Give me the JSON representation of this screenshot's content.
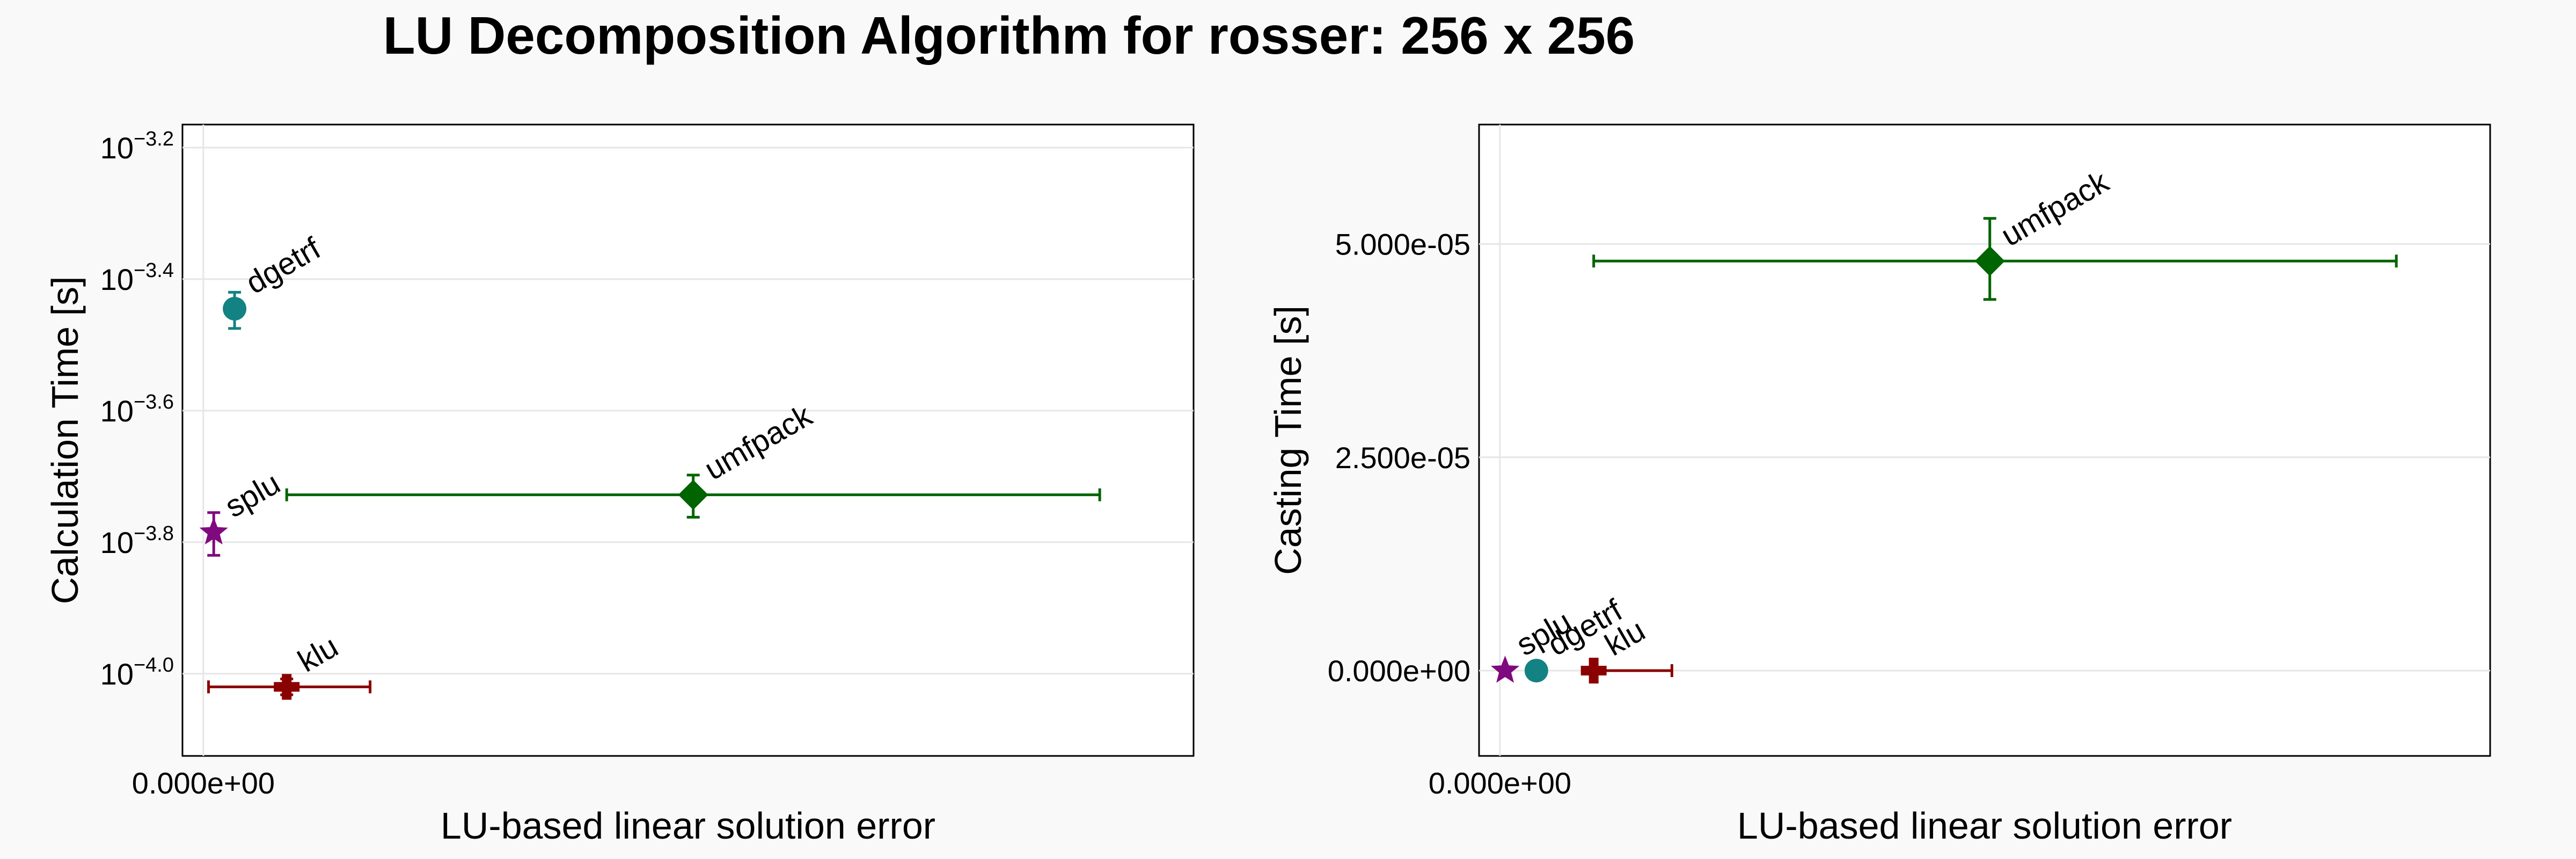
{
  "title": "LU Decomposition Algorithm for rosser: 256 x 256",
  "colors": {
    "dgetrf": "#128282",
    "splu": "#7f0a7f",
    "umfpack": "#006400",
    "klu": "#8b0000"
  },
  "chart_data": [
    {
      "type": "scatter",
      "subtype": "errorbars",
      "xlabel": "LU-based linear solution error",
      "ylabel": "Calculation Time [s]",
      "yscale": "log10",
      "xlim": [
        -0.2,
        9.5
      ],
      "ylim": [
        -4.125,
        -3.165
      ],
      "x_ticks": [
        {
          "value": 0,
          "label": "0.000e+00"
        }
      ],
      "y_ticks": [
        {
          "value": -4.0,
          "base": "10",
          "exp": "−4.0"
        },
        {
          "value": -3.8,
          "base": "10",
          "exp": "−3.8"
        },
        {
          "value": -3.6,
          "base": "10",
          "exp": "−3.6"
        },
        {
          "value": -3.4,
          "base": "10",
          "exp": "−3.4"
        },
        {
          "value": -3.2,
          "base": "10",
          "exp": "−3.2"
        }
      ],
      "grid": true,
      "series": [
        {
          "name": "dgetrf",
          "marker": "circle",
          "x": 0.3,
          "y": -3.445,
          "x_err": null,
          "y_low": -3.475,
          "y_high": -3.42
        },
        {
          "name": "splu",
          "marker": "star",
          "x": 0.1,
          "y": -3.785,
          "x_err": null,
          "y_low": -3.82,
          "y_high": -3.755
        },
        {
          "name": "umfpack",
          "marker": "diamond",
          "x": 4.7,
          "y": -3.728,
          "x_low": 0.8,
          "x_high": 8.6,
          "y_low": -3.762,
          "y_high": -3.698
        },
        {
          "name": "klu",
          "marker": "cross",
          "x": 0.8,
          "y": -4.02,
          "x_low": 0.05,
          "x_high": 1.6,
          "y_low": -4.032,
          "y_high": -4.008
        }
      ]
    },
    {
      "type": "scatter",
      "subtype": "errorbars",
      "xlabel": "LU-based linear solution error",
      "ylabel": "Casting Time [s]",
      "yscale": "linear",
      "xlim": [
        -0.2,
        9.5
      ],
      "ylim": [
        -1e-05,
        6.4e-05
      ],
      "x_ticks": [
        {
          "value": 0,
          "label": "0.000e+00"
        }
      ],
      "y_ticks": [
        {
          "value": 0.0,
          "label": "0.000e+00"
        },
        {
          "value": 2.5e-05,
          "label": "2.500e-05"
        },
        {
          "value": 5e-05,
          "label": "5.000e-05"
        }
      ],
      "grid": true,
      "series": [
        {
          "name": "splu",
          "marker": "star",
          "x": 0.05,
          "y": 0.0,
          "x_err": null
        },
        {
          "name": "dgetrf",
          "marker": "circle",
          "x": 0.35,
          "y": 0.0,
          "x_err": null
        },
        {
          "name": "klu",
          "marker": "cross",
          "x": 0.9,
          "y": 0.0,
          "x_low": 0.9,
          "x_high": 1.65
        },
        {
          "name": "umfpack",
          "marker": "diamond",
          "x": 4.7,
          "y": 4.8e-05,
          "x_low": 0.9,
          "x_high": 8.6,
          "y_low": 4.35e-05,
          "y_high": 5.3e-05
        }
      ]
    }
  ]
}
